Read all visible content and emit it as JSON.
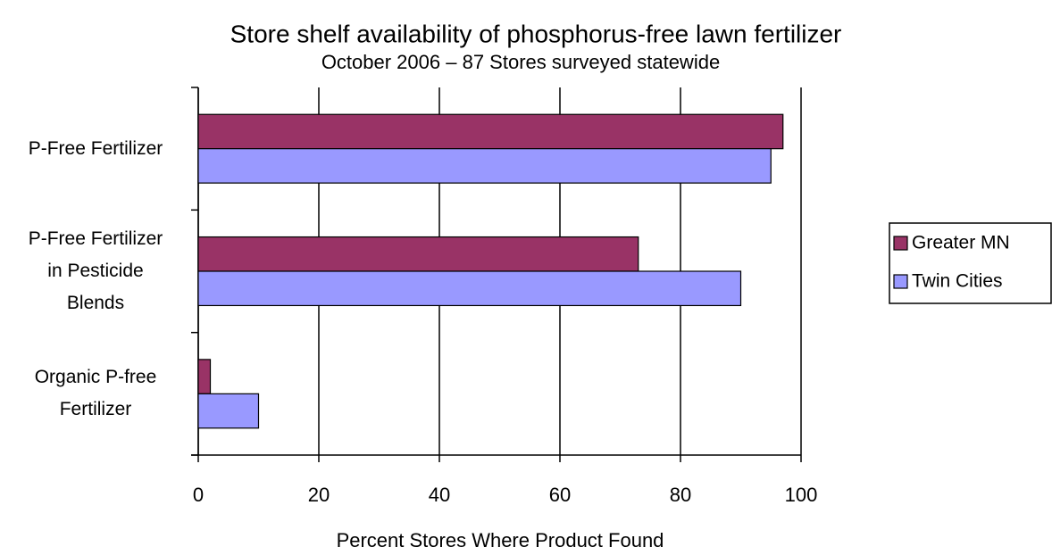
{
  "chart_data": {
    "type": "bar",
    "orientation": "horizontal",
    "title": "Store shelf availability of phosphorus-free lawn fertilizer",
    "subtitle": "October 2006 – 87 Stores surveyed statewide",
    "x_label": "Percent Stores Where Product Found",
    "categories": [
      "P-Free Fertilizer",
      "P-Free Fertilizer\nin Pesticide\nBlends",
      "Organic P-free\nFertilizer"
    ],
    "series": [
      {
        "name": "Greater MN",
        "color": "#993366",
        "values": [
          97,
          73,
          2
        ]
      },
      {
        "name": "Twin Cities",
        "color": "#9999ff",
        "values": [
          95,
          90,
          10
        ]
      }
    ],
    "xlim": [
      0,
      100
    ],
    "xticks": [
      0,
      20,
      40,
      60,
      80,
      100
    ],
    "grid": true,
    "legend": "right"
  }
}
